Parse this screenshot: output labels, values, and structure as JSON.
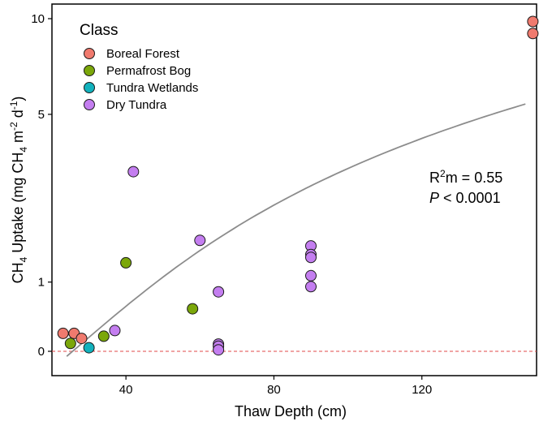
{
  "chart_data": {
    "type": "scatter",
    "xlabel": "Thaw Depth (cm)",
    "ylabel": {
      "base": "CH",
      "sub1": "4",
      "mid": " Uptake  (mg CH",
      "sub2": "4",
      "mid2": " m",
      "sup1": "-2",
      "mid3": " d",
      "sup2": "-1",
      "end": ")"
    },
    "x_ticks": [
      40,
      80,
      120
    ],
    "y_ticks": [
      {
        "value": 0,
        "label": "0"
      },
      {
        "value": 1,
        "label": "1"
      },
      {
        "value": 5,
        "label": "5"
      },
      {
        "value": 10,
        "label": "10"
      }
    ],
    "y_scale": "pseudo-log (compressed above 1)",
    "xlim": [
      20,
      151
    ],
    "grid": false,
    "legend": {
      "title": "Class",
      "position": "top-left",
      "entries": [
        "Boreal Forest",
        "Permafrost Bog",
        "Tundra Wetlands",
        "Dry Tundra"
      ]
    },
    "colors": {
      "Boreal Forest": "#f07a6e",
      "Permafrost Bog": "#7ba70a",
      "Tundra Wetlands": "#12b2bd",
      "Dry Tundra": "#c47ef0",
      "trend": "#8c8c8c",
      "zero_line": "#e24a4a"
    },
    "annotation": {
      "r2_prefix": "R",
      "r2_sup": "2",
      "r2_rest": "m = 0.55",
      "p_italic": "P",
      "p_rest": " < 0.0001"
    },
    "series": [
      {
        "name": "Boreal Forest",
        "points": [
          [
            23,
            0.25
          ],
          [
            26,
            0.25
          ],
          [
            28,
            0.18
          ],
          [
            150,
            9.8
          ],
          [
            150,
            9.0
          ]
        ]
      },
      {
        "name": "Permafrost Bog",
        "points": [
          [
            25,
            0.11
          ],
          [
            34,
            0.21
          ],
          [
            40,
            1.31
          ],
          [
            58,
            0.6
          ]
        ]
      },
      {
        "name": "Tundra Wetlands",
        "points": [
          [
            30,
            0.05
          ]
        ]
      },
      {
        "name": "Dry Tundra",
        "points": [
          [
            37,
            0.29
          ],
          [
            42,
            3.2
          ],
          [
            60,
            1.7
          ],
          [
            65,
            0.85
          ],
          [
            65,
            0.1
          ],
          [
            65,
            0.07
          ],
          [
            65,
            0.02
          ],
          [
            90,
            1.6
          ],
          [
            90,
            1.45
          ],
          [
            90,
            1.4
          ],
          [
            90,
            1.1
          ],
          [
            90,
            0.93
          ]
        ]
      }
    ],
    "trend_line": {
      "x_start": 24,
      "x_end": 148,
      "y_start": -0.07,
      "y_end": 5.4
    },
    "reference_line": {
      "y": 0,
      "style": "dashed"
    }
  }
}
